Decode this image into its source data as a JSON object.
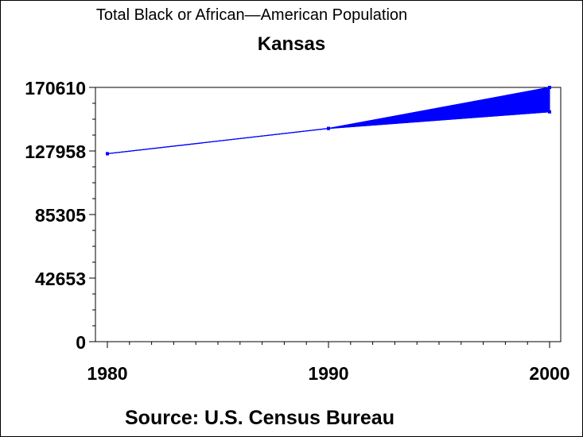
{
  "chart_data": {
    "type": "area",
    "title": "Total Black or African—American Population",
    "subtitle": "Kansas",
    "source": "Source: U.S. Census Bureau",
    "x": [
      1980,
      1990,
      2000
    ],
    "series": [
      {
        "values": [
          126127,
          143076,
          170610
        ]
      },
      {
        "values": [
          126127,
          143076,
          154198
        ]
      }
    ],
    "x_ticks": [
      "1980",
      "1990",
      "2000"
    ],
    "y_ticks": [
      "0",
      "42653",
      "85305",
      "127958",
      "170610"
    ],
    "ylim": [
      0,
      170610
    ],
    "xlim": [
      1980,
      2000
    ],
    "grid": false,
    "color": "#0000ff"
  }
}
